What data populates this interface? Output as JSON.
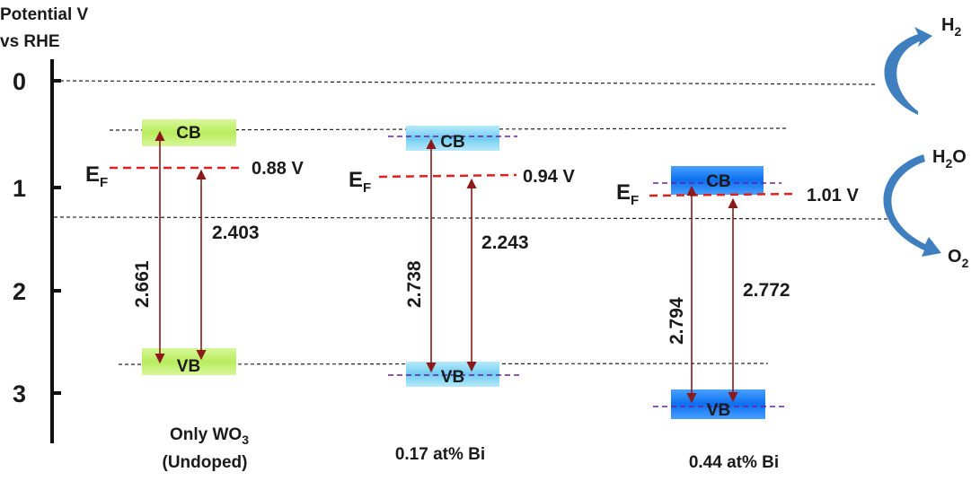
{
  "axis": {
    "title_line1": "Potential V",
    "title_line2": "vs RHE",
    "ticks": [
      "0",
      "1",
      "2",
      "3"
    ]
  },
  "energy_levels": {
    "band_labels": {
      "cb": "CB",
      "vb": "VB"
    },
    "fermi_symbol": "E",
    "fermi_subscript": "F",
    "samples": [
      {
        "name_line1": "Only WO",
        "name_sub": "3",
        "name_line2": "(Undoped)",
        "cb": 0.47,
        "vb": 2.7,
        "fermi": "0.88 V",
        "gap_cb_vb": "2.661",
        "gap_fermi_vb": "2.403",
        "color": "#c8f27a"
      },
      {
        "name_line1": "0.17 at% Bi",
        "name_sub": "",
        "name_line2": "",
        "cb": 0.58,
        "vb": 2.8,
        "fermi": "0.94 V",
        "gap_cb_vb": "2.738",
        "gap_fermi_vb": "2.243",
        "color": "#7fd3f2"
      },
      {
        "name_line1": "0.44 at% Bi",
        "name_sub": "",
        "name_line2": "",
        "cb": 0.97,
        "vb": 3.12,
        "fermi": "1.01 V",
        "gap_cb_vb": "2.794",
        "gap_fermi_vb": "2.772",
        "color": "#1c7df0"
      }
    ]
  },
  "reactions": {
    "h2": {
      "symbol": "H",
      "sub": "2"
    },
    "h2o": {
      "symbol": "H",
      "sub": "2",
      "tail": "O"
    },
    "o2": {
      "symbol": "O",
      "sub": "2"
    }
  },
  "colors": {
    "fermi_line": "#e02020",
    "gap_arrow": "#8b1a1a",
    "band_edge_dash": "#6a1fa0",
    "reaction_arrow": "#3f7fc0"
  }
}
